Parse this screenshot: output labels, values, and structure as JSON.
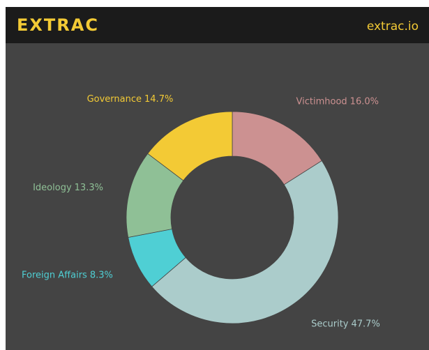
{
  "header": {
    "logo": "EXTRAC",
    "link": "extrac.io"
  },
  "chart_data": {
    "type": "donut",
    "categories": [
      "Victimhood",
      "Security",
      "Foreign Affairs",
      "Ideology",
      "Governance"
    ],
    "values": [
      16.0,
      47.7,
      8.3,
      13.3,
      14.7
    ],
    "value_labels": [
      "16.0%",
      "47.7%",
      "8.3%",
      "13.3%",
      "14.7%"
    ],
    "colors": [
      "#cc9191",
      "#abcccb",
      "#4fcfd4",
      "#8fc096",
      "#f3ca35"
    ]
  }
}
